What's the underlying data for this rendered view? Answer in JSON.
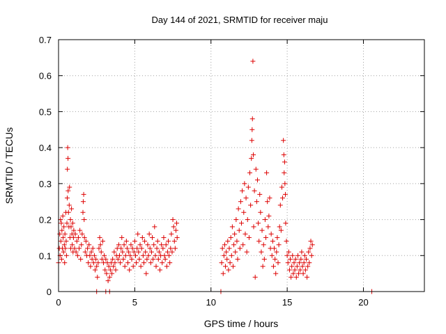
{
  "chart_data": {
    "type": "scatter",
    "title": "Day 144 of 2021, SRMTID for receiver maju",
    "xlabel": "GPS time / hours",
    "ylabel": "SRMTID / TECUs",
    "xlim": [
      0,
      24
    ],
    "ylim": [
      0,
      0.7
    ],
    "xticks": [
      0,
      5,
      10,
      15,
      20
    ],
    "yticks": [
      0,
      0.1,
      0.2,
      0.3,
      0.4,
      0.5,
      0.6,
      0.7
    ],
    "xtick_labels": [
      "0",
      "5",
      "10",
      "15",
      "20"
    ],
    "ytick_labels": [
      "0",
      "0.1",
      "0.2",
      "0.3",
      "0.4",
      "0.5",
      "0.6",
      "0.7"
    ],
    "grid": true,
    "marker": "+",
    "color": "#dd0000",
    "series": [
      {
        "name": "SRMTID",
        "points": [
          [
            0.0,
            0.08
          ],
          [
            0.05,
            0.12
          ],
          [
            0.08,
            0.16
          ],
          [
            0.1,
            0.1
          ],
          [
            0.13,
            0.2
          ],
          [
            0.15,
            0.14
          ],
          [
            0.18,
            0.19
          ],
          [
            0.2,
            0.09
          ],
          [
            0.22,
            0.17
          ],
          [
            0.25,
            0.12
          ],
          [
            0.28,
            0.21
          ],
          [
            0.3,
            0.15
          ],
          [
            0.33,
            0.11
          ],
          [
            0.35,
            0.18
          ],
          [
            0.38,
            0.13
          ],
          [
            0.4,
            0.08
          ],
          [
            0.42,
            0.16
          ],
          [
            0.45,
            0.12
          ],
          [
            0.48,
            0.22
          ],
          [
            0.5,
            0.14
          ],
          [
            0.52,
            0.1
          ],
          [
            0.55,
            0.19
          ],
          [
            0.57,
            0.26
          ],
          [
            0.58,
            0.34
          ],
          [
            0.6,
            0.4
          ],
          [
            0.62,
            0.37
          ],
          [
            0.63,
            0.28
          ],
          [
            0.65,
            0.22
          ],
          [
            0.68,
            0.18
          ],
          [
            0.7,
            0.24
          ],
          [
            0.72,
            0.29
          ],
          [
            0.75,
            0.15
          ],
          [
            0.78,
            0.2
          ],
          [
            0.8,
            0.12
          ],
          [
            0.82,
            0.18
          ],
          [
            0.85,
            0.23
          ],
          [
            0.88,
            0.16
          ],
          [
            0.9,
            0.13
          ],
          [
            0.93,
            0.19
          ],
          [
            0.95,
            0.11
          ],
          [
            0.98,
            0.15
          ],
          [
            1.0,
            0.17
          ],
          [
            1.05,
            0.12
          ],
          [
            1.1,
            0.16
          ],
          [
            1.15,
            0.11
          ],
          [
            1.2,
            0.14
          ],
          [
            1.25,
            0.1
          ],
          [
            1.3,
            0.15
          ],
          [
            1.35,
            0.12
          ],
          [
            1.4,
            0.17
          ],
          [
            1.45,
            0.09
          ],
          [
            1.5,
            0.13
          ],
          [
            1.55,
            0.16
          ],
          [
            1.6,
            0.22
          ],
          [
            1.62,
            0.25
          ],
          [
            1.65,
            0.27
          ],
          [
            1.68,
            0.2
          ],
          [
            1.7,
            0.15
          ],
          [
            1.75,
            0.11
          ],
          [
            1.8,
            0.14
          ],
          [
            1.85,
            0.1
          ],
          [
            1.9,
            0.12
          ],
          [
            1.95,
            0.08
          ],
          [
            2.0,
            0.13
          ],
          [
            2.05,
            0.1
          ],
          [
            2.1,
            0.07
          ],
          [
            2.15,
            0.11
          ],
          [
            2.2,
            0.09
          ],
          [
            2.25,
            0.12
          ],
          [
            2.3,
            0.08
          ],
          [
            2.35,
            0.1
          ],
          [
            2.4,
            0.06
          ],
          [
            2.45,
            0.09
          ],
          [
            2.5,
            0.07
          ],
          [
            2.55,
            0.04
          ],
          [
            2.6,
            0.08
          ],
          [
            2.65,
            0.12
          ],
          [
            2.7,
            0.15
          ],
          [
            2.75,
            0.13
          ],
          [
            2.8,
            0.11
          ],
          [
            2.85,
            0.09
          ],
          [
            2.9,
            0.14
          ],
          [
            2.95,
            0.08
          ],
          [
            3.0,
            0.1
          ],
          [
            3.05,
            0.06
          ],
          [
            3.1,
            0.09
          ],
          [
            3.15,
            0.05
          ],
          [
            3.2,
            0.08
          ],
          [
            3.25,
            0.03
          ],
          [
            3.3,
            0.07
          ],
          [
            3.35,
            0.04
          ],
          [
            3.4,
            0.06
          ],
          [
            3.45,
            0.08
          ],
          [
            3.5,
            0.05
          ],
          [
            3.55,
            0.09
          ],
          [
            3.6,
            0.07
          ],
          [
            3.65,
            0.11
          ],
          [
            3.7,
            0.08
          ],
          [
            3.75,
            0.06
          ],
          [
            3.8,
            0.1
          ],
          [
            3.85,
            0.12
          ],
          [
            3.9,
            0.09
          ],
          [
            3.95,
            0.13
          ],
          [
            4.0,
            0.1
          ],
          [
            4.05,
            0.08
          ],
          [
            4.1,
            0.12
          ],
          [
            4.15,
            0.15
          ],
          [
            4.2,
            0.11
          ],
          [
            4.25,
            0.09
          ],
          [
            4.3,
            0.13
          ],
          [
            4.35,
            0.07
          ],
          [
            4.4,
            0.1
          ],
          [
            4.45,
            0.14
          ],
          [
            4.5,
            0.12
          ],
          [
            4.55,
            0.08
          ],
          [
            4.6,
            0.11
          ],
          [
            4.65,
            0.06
          ],
          [
            4.7,
            0.1
          ],
          [
            4.75,
            0.13
          ],
          [
            4.8,
            0.09
          ],
          [
            4.85,
            0.12
          ],
          [
            4.9,
            0.07
          ],
          [
            4.95,
            0.11
          ],
          [
            5.0,
            0.14
          ],
          [
            5.05,
            0.1
          ],
          [
            5.1,
            0.08
          ],
          [
            5.15,
            0.12
          ],
          [
            5.2,
            0.16
          ],
          [
            5.25,
            0.11
          ],
          [
            5.3,
            0.09
          ],
          [
            5.35,
            0.13
          ],
          [
            5.4,
            0.07
          ],
          [
            5.45,
            0.12
          ],
          [
            5.5,
            0.15
          ],
          [
            5.55,
            0.1
          ],
          [
            5.6,
            0.08
          ],
          [
            5.65,
            0.14
          ],
          [
            5.7,
            0.11
          ],
          [
            5.75,
            0.05
          ],
          [
            5.8,
            0.09
          ],
          [
            5.85,
            0.13
          ],
          [
            5.9,
            0.1
          ],
          [
            5.95,
            0.16
          ],
          [
            6.0,
            0.12
          ],
          [
            6.05,
            0.08
          ],
          [
            6.1,
            0.11
          ],
          [
            6.15,
            0.15
          ],
          [
            6.2,
            0.09
          ],
          [
            6.25,
            0.13
          ],
          [
            6.3,
            0.18
          ],
          [
            6.35,
            0.1
          ],
          [
            6.4,
            0.07
          ],
          [
            6.45,
            0.12
          ],
          [
            6.5,
            0.14
          ],
          [
            6.55,
            0.09
          ],
          [
            6.6,
            0.11
          ],
          [
            6.65,
            0.06
          ],
          [
            6.7,
            0.1
          ],
          [
            6.75,
            0.13
          ],
          [
            6.8,
            0.08
          ],
          [
            6.85,
            0.12
          ],
          [
            6.9,
            0.15
          ],
          [
            6.95,
            0.1
          ],
          [
            7.0,
            0.09
          ],
          [
            7.05,
            0.13
          ],
          [
            7.1,
            0.07
          ],
          [
            7.15,
            0.11
          ],
          [
            7.2,
            0.14
          ],
          [
            7.25,
            0.1
          ],
          [
            7.3,
            0.08
          ],
          [
            7.35,
            0.12
          ],
          [
            7.4,
            0.16
          ],
          [
            7.45,
            0.11
          ],
          [
            7.5,
            0.2
          ],
          [
            7.55,
            0.18
          ],
          [
            7.6,
            0.14
          ],
          [
            7.65,
            0.12
          ],
          [
            7.7,
            0.17
          ],
          [
            7.75,
            0.19
          ],
          [
            7.78,
            0.15
          ],
          [
            10.7,
            0.08
          ],
          [
            10.75,
            0.12
          ],
          [
            10.8,
            0.05
          ],
          [
            10.85,
            0.1
          ],
          [
            10.9,
            0.13
          ],
          [
            10.95,
            0.07
          ],
          [
            11.0,
            0.11
          ],
          [
            11.05,
            0.09
          ],
          [
            11.1,
            0.14
          ],
          [
            11.15,
            0.06
          ],
          [
            11.2,
            0.12
          ],
          [
            11.25,
            0.08
          ],
          [
            11.3,
            0.15
          ],
          [
            11.35,
            0.1
          ],
          [
            11.4,
            0.18
          ],
          [
            11.45,
            0.07
          ],
          [
            11.5,
            0.13
          ],
          [
            11.55,
            0.16
          ],
          [
            11.6,
            0.11
          ],
          [
            11.65,
            0.2
          ],
          [
            11.7,
            0.14
          ],
          [
            11.75,
            0.09
          ],
          [
            11.8,
            0.23
          ],
          [
            11.85,
            0.17
          ],
          [
            11.9,
            0.12
          ],
          [
            11.95,
            0.25
          ],
          [
            12.0,
            0.19
          ],
          [
            12.05,
            0.28
          ],
          [
            12.1,
            0.13
          ],
          [
            12.15,
            0.22
          ],
          [
            12.2,
            0.3
          ],
          [
            12.25,
            0.16
          ],
          [
            12.3,
            0.26
          ],
          [
            12.35,
            0.11
          ],
          [
            12.4,
            0.2
          ],
          [
            12.45,
            0.29
          ],
          [
            12.5,
            0.15
          ],
          [
            12.55,
            0.33
          ],
          [
            12.6,
            0.24
          ],
          [
            12.65,
            0.37
          ],
          [
            12.68,
            0.42
          ],
          [
            12.7,
            0.45
          ],
          [
            12.72,
            0.48
          ],
          [
            12.75,
            0.64
          ],
          [
            12.78,
            0.38
          ],
          [
            12.8,
            0.18
          ],
          [
            12.85,
            0.28
          ],
          [
            12.9,
            0.04
          ],
          [
            12.95,
            0.34
          ],
          [
            13.0,
            0.25
          ],
          [
            13.05,
            0.31
          ],
          [
            13.1,
            0.19
          ],
          [
            13.15,
            0.14
          ],
          [
            13.2,
            0.27
          ],
          [
            13.25,
            0.22
          ],
          [
            13.3,
            0.11
          ],
          [
            13.35,
            0.17
          ],
          [
            13.4,
            0.07
          ],
          [
            13.45,
            0.13
          ],
          [
            13.5,
            0.09
          ],
          [
            13.55,
            0.2
          ],
          [
            13.6,
            0.15
          ],
          [
            13.65,
            0.33
          ],
          [
            13.7,
            0.25
          ],
          [
            13.75,
            0.18
          ],
          [
            13.8,
            0.21
          ],
          [
            13.85,
            0.26
          ],
          [
            13.9,
            0.12
          ],
          [
            13.95,
            0.16
          ],
          [
            14.0,
            0.1
          ],
          [
            14.05,
            0.14
          ],
          [
            14.1,
            0.07
          ],
          [
            14.15,
            0.12
          ],
          [
            14.2,
            0.09
          ],
          [
            14.25,
            0.05
          ],
          [
            14.3,
            0.11
          ],
          [
            14.35,
            0.15
          ],
          [
            14.4,
            0.08
          ],
          [
            14.45,
            0.13
          ],
          [
            14.5,
            0.18
          ],
          [
            14.55,
            0.24
          ],
          [
            14.6,
            0.17
          ],
          [
            14.65,
            0.29
          ],
          [
            14.7,
            0.26
          ],
          [
            14.75,
            0.42
          ],
          [
            14.78,
            0.38
          ],
          [
            14.8,
            0.33
          ],
          [
            14.83,
            0.36
          ],
          [
            14.85,
            0.3
          ],
          [
            14.88,
            0.27
          ],
          [
            14.9,
            0.19
          ],
          [
            14.95,
            0.14
          ],
          [
            15.0,
            0.1
          ],
          [
            15.05,
            0.08
          ],
          [
            15.1,
            0.11
          ],
          [
            15.15,
            0.06
          ],
          [
            15.2,
            0.09
          ],
          [
            15.25,
            0.04
          ],
          [
            15.3,
            0.07
          ],
          [
            15.35,
            0.1
          ],
          [
            15.4,
            0.05
          ],
          [
            15.45,
            0.08
          ],
          [
            15.5,
            0.06
          ],
          [
            15.55,
            0.09
          ],
          [
            15.6,
            0.04
          ],
          [
            15.65,
            0.07
          ],
          [
            15.7,
            0.1
          ],
          [
            15.75,
            0.05
          ],
          [
            15.8,
            0.08
          ],
          [
            15.85,
            0.06
          ],
          [
            15.9,
            0.09
          ],
          [
            15.95,
            0.11
          ],
          [
            16.0,
            0.07
          ],
          [
            16.05,
            0.05
          ],
          [
            16.1,
            0.08
          ],
          [
            16.15,
            0.1
          ],
          [
            16.2,
            0.06
          ],
          [
            16.25,
            0.09
          ],
          [
            16.3,
            0.04
          ],
          [
            16.35,
            0.07
          ],
          [
            16.4,
            0.11
          ],
          [
            16.45,
            0.08
          ],
          [
            16.5,
            0.12
          ],
          [
            16.55,
            0.14
          ],
          [
            16.6,
            0.1
          ],
          [
            16.65,
            0.13
          ],
          [
            2.5,
            0.0
          ],
          [
            3.1,
            0.0
          ],
          [
            3.35,
            0.0
          ],
          [
            10.65,
            0.0
          ],
          [
            20.55,
            0.0
          ]
        ]
      }
    ]
  }
}
